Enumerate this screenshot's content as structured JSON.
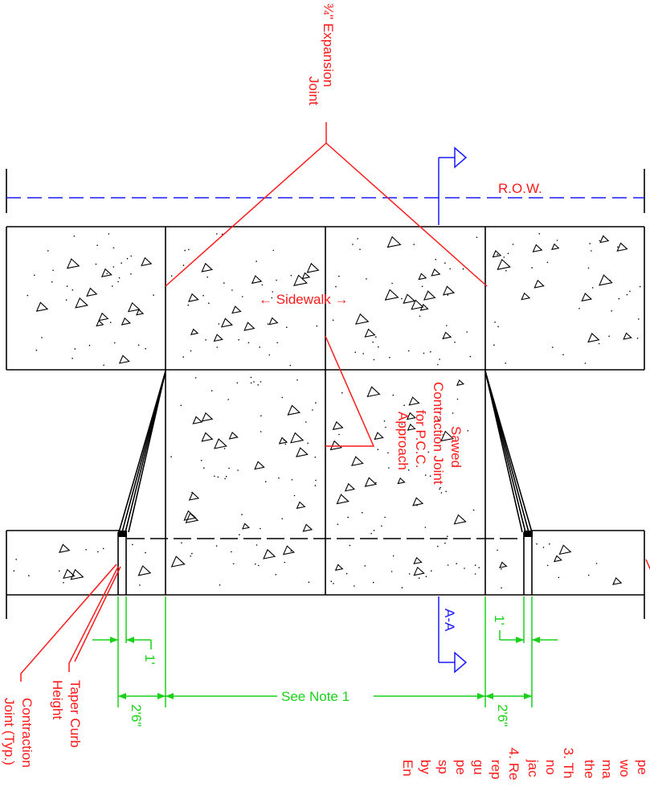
{
  "colors": {
    "annotation": "#ff1a1a",
    "dimension": "#19d119",
    "section": "#1a1aff",
    "outline": "#000000",
    "background": "#ffffff"
  },
  "labels": {
    "expansion_joint_line1": "¾\" Expansion",
    "expansion_joint_line2": "Joint",
    "row": "R.O.W.",
    "sidewalk": "←  Sidewalk  →",
    "sawed_line1": "Sawed",
    "sawed_line2": "Contraction Joint",
    "sawed_line3": "for P.C.C.",
    "sawed_line4": "Approach",
    "section_cut": "A-A",
    "taper_line1": "Taper Curb",
    "taper_line2": "Height",
    "contraction_line1": "Contraction",
    "contraction_line2": "Joint (Typ.)"
  },
  "dimensions": {
    "left_taper": "2'6\"",
    "right_taper": "2'6\"",
    "left_offset": "1'",
    "right_offset": "1'",
    "center": "See Note 1"
  },
  "notes": {
    "lines": [
      "pe",
      "wo",
      "ma",
      "the",
      "3. Th",
      "no",
      "jac",
      "4. Re",
      "rep",
      "gu",
      "pe",
      "sp",
      "by",
      "En"
    ]
  }
}
